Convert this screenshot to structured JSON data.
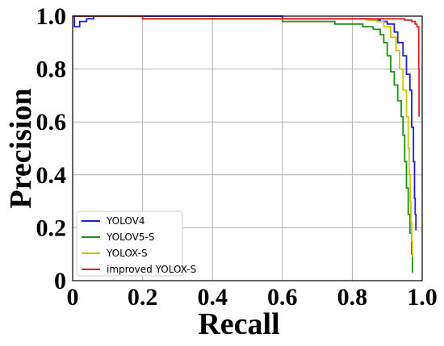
{
  "chart_data": {
    "type": "line",
    "title": "",
    "xlabel": "Recall",
    "ylabel": "Precision",
    "xlim": [
      0,
      1.0
    ],
    "ylim": [
      0,
      1.0
    ],
    "grid": true,
    "legend_position": "lower-left",
    "x_ticks": [
      "0",
      "0.2",
      "0.4",
      "0.6",
      "0.8",
      "1.0"
    ],
    "y_ticks": [
      "0",
      "0.2",
      "0.4",
      "0.6",
      "0.8",
      "1.0"
    ],
    "series": [
      {
        "name": "YOLOV4",
        "color": "#1f1fd6",
        "points": [
          [
            0.0,
            1.0
          ],
          [
            0.005,
            0.96
          ],
          [
            0.015,
            0.96
          ],
          [
            0.02,
            0.98
          ],
          [
            0.04,
            0.99
          ],
          [
            0.06,
            1.0
          ],
          [
            0.15,
            1.0
          ],
          [
            0.45,
            1.0
          ],
          [
            0.6,
            0.99
          ],
          [
            0.8,
            0.99
          ],
          [
            0.85,
            0.985
          ],
          [
            0.88,
            0.98
          ],
          [
            0.9,
            0.97
          ],
          [
            0.92,
            0.94
          ],
          [
            0.93,
            0.9
          ],
          [
            0.945,
            0.85
          ],
          [
            0.955,
            0.78
          ],
          [
            0.965,
            0.72
          ],
          [
            0.97,
            0.58
          ],
          [
            0.975,
            0.45
          ],
          [
            0.978,
            0.31
          ],
          [
            0.98,
            0.25
          ],
          [
            0.982,
            0.19
          ]
        ]
      },
      {
        "name": "YOLOV5-S",
        "color": "#1a8f1a",
        "points": [
          [
            0.0,
            1.0
          ],
          [
            0.2,
            1.0
          ],
          [
            0.2,
            0.99
          ],
          [
            0.6,
            0.99
          ],
          [
            0.6,
            0.98
          ],
          [
            0.7,
            0.98
          ],
          [
            0.75,
            0.97
          ],
          [
            0.8,
            0.97
          ],
          [
            0.83,
            0.96
          ],
          [
            0.86,
            0.95
          ],
          [
            0.88,
            0.93
          ],
          [
            0.89,
            0.9
          ],
          [
            0.9,
            0.85
          ],
          [
            0.91,
            0.79
          ],
          [
            0.92,
            0.74
          ],
          [
            0.93,
            0.68
          ],
          [
            0.94,
            0.62
          ],
          [
            0.945,
            0.55
          ],
          [
            0.95,
            0.45
          ],
          [
            0.955,
            0.35
          ],
          [
            0.96,
            0.25
          ],
          [
            0.965,
            0.18
          ],
          [
            0.97,
            0.1
          ],
          [
            0.972,
            0.03
          ]
        ]
      },
      {
        "name": "YOLOX-S",
        "color": "#c8c800",
        "points": [
          [
            0.0,
            1.0
          ],
          [
            0.19,
            1.0
          ],
          [
            0.2,
            0.99
          ],
          [
            0.6,
            0.99
          ],
          [
            0.8,
            0.99
          ],
          [
            0.84,
            0.985
          ],
          [
            0.87,
            0.98
          ],
          [
            0.89,
            0.96
          ],
          [
            0.91,
            0.92
          ],
          [
            0.925,
            0.87
          ],
          [
            0.935,
            0.8
          ],
          [
            0.945,
            0.72
          ],
          [
            0.955,
            0.62
          ],
          [
            0.96,
            0.5
          ],
          [
            0.963,
            0.4
          ],
          [
            0.966,
            0.3
          ],
          [
            0.968,
            0.22
          ],
          [
            0.97,
            0.15
          ],
          [
            0.972,
            0.09
          ]
        ]
      },
      {
        "name": "improved YOLOX-S",
        "color": "#e02020",
        "points": [
          [
            0.0,
            1.0
          ],
          [
            0.2,
            1.0
          ],
          [
            0.2,
            0.99
          ],
          [
            0.6,
            0.99
          ],
          [
            0.9,
            0.99
          ],
          [
            0.95,
            0.985
          ],
          [
            0.97,
            0.98
          ],
          [
            0.98,
            0.97
          ],
          [
            0.985,
            0.96
          ],
          [
            0.99,
            0.95
          ],
          [
            0.99,
            0.8
          ],
          [
            0.991,
            0.62
          ]
        ]
      }
    ]
  }
}
